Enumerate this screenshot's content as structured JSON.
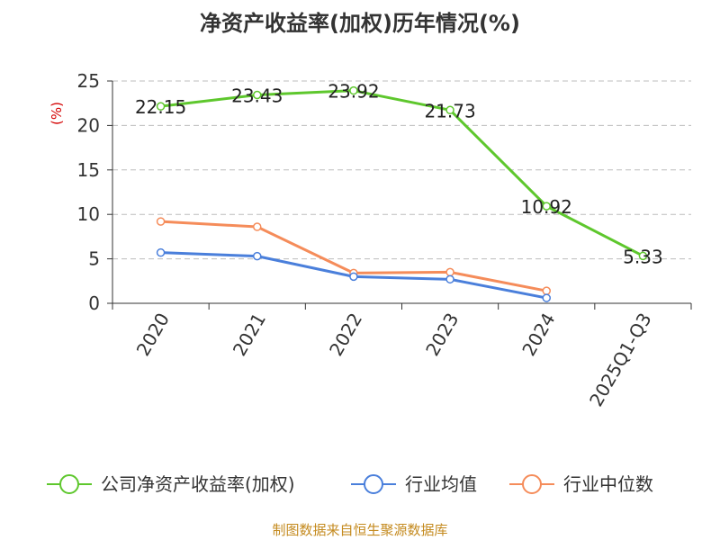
{
  "chart_data": {
    "type": "line",
    "title": "净资产收益率(加权)历年情况(%)",
    "ylabel": "(%)",
    "xlabel": "",
    "categories": [
      "2020",
      "2021",
      "2022",
      "2023",
      "2024",
      "2025Q1-Q3"
    ],
    "ylim": [
      0,
      25
    ],
    "yticks": [
      0,
      5,
      10,
      15,
      20,
      25
    ],
    "grid": "horizontal-dashed",
    "legend_position": "bottom",
    "series": [
      {
        "name": "公司净资产收益率(加权)",
        "color": "#5ec72d",
        "values": [
          22.15,
          23.43,
          23.92,
          21.73,
          10.92,
          5.33
        ],
        "labels": [
          "22.15",
          "23.43",
          "23.92",
          "21.73",
          "10.92",
          "5.33"
        ]
      },
      {
        "name": "行业均值",
        "color": "#4a7fdb",
        "values": [
          5.7,
          5.3,
          3.0,
          2.7,
          0.6,
          null
        ]
      },
      {
        "name": "行业中位数",
        "color": "#f58c5a",
        "values": [
          9.2,
          8.6,
          3.4,
          3.5,
          1.4,
          null
        ]
      }
    ]
  },
  "footer": {
    "source": "制图数据来自恒生聚源数据库"
  }
}
